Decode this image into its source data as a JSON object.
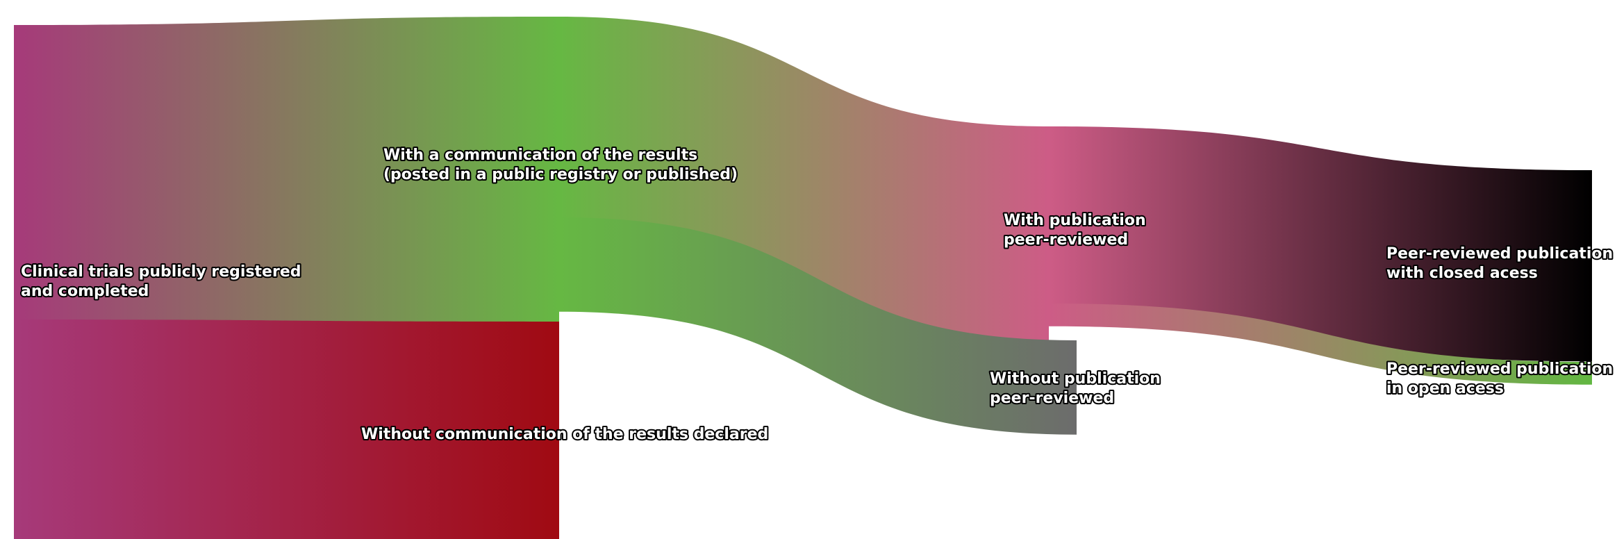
{
  "chart_data": {
    "type": "sankey",
    "nodes": [
      {
        "id": "trials",
        "lines": [
          "Clinical trials publicly registered",
          "and completed"
        ],
        "color": "#a63a7a"
      },
      {
        "id": "communicated",
        "lines": [
          "With a communication of the results",
          "(posted in a public registry or published)"
        ],
        "color": "#66b843"
      },
      {
        "id": "no_communication",
        "lines": [
          "Without communication of the results declared"
        ],
        "color": "#a00a12"
      },
      {
        "id": "published",
        "lines": [
          "With publication",
          "peer-reviewed"
        ],
        "color": "#cd5c86"
      },
      {
        "id": "not_published",
        "lines": [
          "Without publication",
          "peer-reviewed"
        ],
        "color": "#6c6c6c"
      },
      {
        "id": "closed",
        "lines": [
          "Peer-reviewed publication",
          "with closed acess"
        ],
        "color": "#000000"
      },
      {
        "id": "open",
        "lines": [
          "Peer-reviewed publication",
          "in open acess"
        ],
        "color": "#62b742"
      }
    ],
    "links": [
      {
        "source": "trials",
        "target": "communicated",
        "value": 56.9
      },
      {
        "source": "trials",
        "target": "no_communication",
        "value": 43.1
      },
      {
        "source": "communicated",
        "target": "published",
        "value": 39.5
      },
      {
        "source": "communicated",
        "target": "not_published",
        "value": 17.4
      },
      {
        "source": "published",
        "target": "closed",
        "value": 35.3
      },
      {
        "source": "published",
        "target": "open",
        "value": 4.2
      }
    ]
  }
}
